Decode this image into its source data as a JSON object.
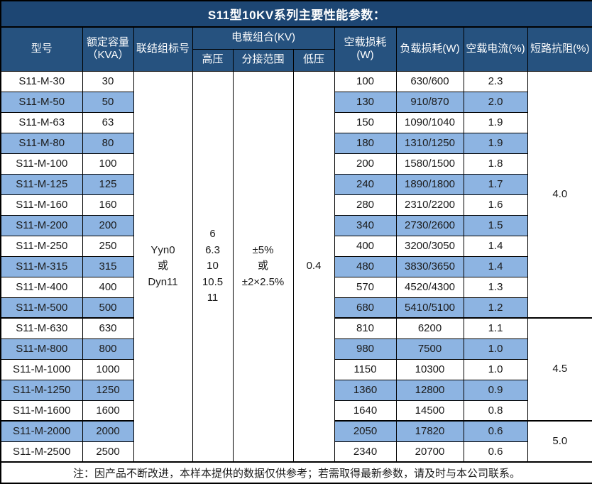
{
  "title": "S11型10KV系列主要性能参数：",
  "header": {
    "model": "型号",
    "capacity_line1": "额定容量",
    "capacity_line2": "（KVA）",
    "connection": "联结组标号",
    "voltage_group": "电载组合(KV)",
    "hv": "高压",
    "tap_range": "分接范围",
    "lv": "低压",
    "no_load_loss": "空载损耗(W)",
    "load_loss": "负载损耗(W)",
    "no_load_current": "空载电流(%)",
    "impedance": "短路抗阻(%)"
  },
  "merged": {
    "connection_lines": [
      "Yyn0",
      "或",
      "Dyn11"
    ],
    "hv_lines": [
      "6",
      "6.3",
      "10",
      "10.5",
      "11"
    ],
    "tap_range_lines": [
      "±5%",
      "或",
      "±2×2.5%"
    ],
    "lv_value": "0.4"
  },
  "impedance_groups": [
    {
      "value": "4.0",
      "rows": 12
    },
    {
      "value": "4.5",
      "rows": 5
    },
    {
      "value": "5.0",
      "rows": 2
    }
  ],
  "rows": [
    {
      "model": "S11-M-30",
      "capacity": "30",
      "no_load_loss": "100",
      "load_loss": "630/600",
      "no_load_current": "2.3"
    },
    {
      "model": "S11-M-50",
      "capacity": "50",
      "no_load_loss": "130",
      "load_loss": "910/870",
      "no_load_current": "2.0"
    },
    {
      "model": "S11-M-63",
      "capacity": "63",
      "no_load_loss": "150",
      "load_loss": "1090/1040",
      "no_load_current": "1.9"
    },
    {
      "model": "S11-M-80",
      "capacity": "80",
      "no_load_loss": "180",
      "load_loss": "1310/1250",
      "no_load_current": "1.9"
    },
    {
      "model": "S11-M-100",
      "capacity": "100",
      "no_load_loss": "200",
      "load_loss": "1580/1500",
      "no_load_current": "1.8"
    },
    {
      "model": "S11-M-125",
      "capacity": "125",
      "no_load_loss": "240",
      "load_loss": "1890/1800",
      "no_load_current": "1.7"
    },
    {
      "model": "S11-M-160",
      "capacity": "160",
      "no_load_loss": "280",
      "load_loss": "2310/2200",
      "no_load_current": "1.6"
    },
    {
      "model": "S11-M-200",
      "capacity": "200",
      "no_load_loss": "340",
      "load_loss": "2730/2600",
      "no_load_current": "1.5"
    },
    {
      "model": "S11-M-250",
      "capacity": "250",
      "no_load_loss": "400",
      "load_loss": "3200/3050",
      "no_load_current": "1.4"
    },
    {
      "model": "S11-M-315",
      "capacity": "315",
      "no_load_loss": "480",
      "load_loss": "3830/3650",
      "no_load_current": "1.4"
    },
    {
      "model": "S11-M-400",
      "capacity": "400",
      "no_load_loss": "570",
      "load_loss": "4520/4300",
      "no_load_current": "1.3"
    },
    {
      "model": "S11-M-500",
      "capacity": "500",
      "no_load_loss": "680",
      "load_loss": "5410/5100",
      "no_load_current": "1.2"
    },
    {
      "model": "S11-M-630",
      "capacity": "630",
      "no_load_loss": "810",
      "load_loss": "6200",
      "no_load_current": "1.1"
    },
    {
      "model": "S11-M-800",
      "capacity": "800",
      "no_load_loss": "980",
      "load_loss": "7500",
      "no_load_current": "1.0"
    },
    {
      "model": "S11-M-1000",
      "capacity": "1000",
      "no_load_loss": "1150",
      "load_loss": "10300",
      "no_load_current": "1.0"
    },
    {
      "model": "S11-M-1250",
      "capacity": "1250",
      "no_load_loss": "1360",
      "load_loss": "12800",
      "no_load_current": "0.9"
    },
    {
      "model": "S11-M-1600",
      "capacity": "1600",
      "no_load_loss": "1640",
      "load_loss": "14500",
      "no_load_current": "0.8"
    },
    {
      "model": "S11-M-2000",
      "capacity": "2000",
      "no_load_loss": "2050",
      "load_loss": "17820",
      "no_load_current": "0.6"
    },
    {
      "model": "S11-M-2500",
      "capacity": "2500",
      "no_load_loss": "2340",
      "load_loss": "20700",
      "no_load_current": "0.6"
    }
  ],
  "footer_note": "注：因产品不断改进，本样本提供的数据仅供参考；若需取得最新参数，请及时与本公司联系。",
  "colors": {
    "title_bg": "#1d4673",
    "header_bg": "#26527f",
    "stripe_bg": "#8db4e2",
    "border": "#000000"
  }
}
